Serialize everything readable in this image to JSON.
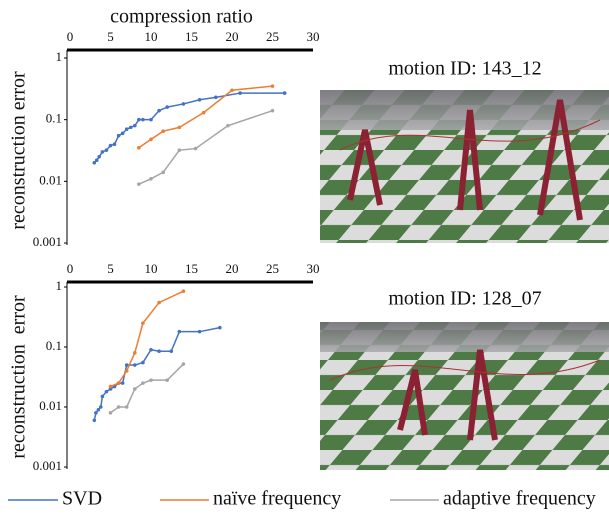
{
  "chart_data": [
    {
      "type": "line",
      "title": "motion ID: 143_12",
      "xlabel": "compression ratio",
      "ylabel": "reconstruction error",
      "xlim": [
        0,
        30
      ],
      "xticks": [
        0,
        5,
        10,
        15,
        20,
        25,
        30
      ],
      "ylim": [
        0.001,
        1
      ],
      "yticks": [
        1,
        0.1,
        0.01,
        0.001
      ],
      "log_y": true,
      "series": [
        {
          "name": "SVD",
          "color": "#4472c4",
          "x": [
            3,
            3.3,
            3.6,
            4,
            4.5,
            5,
            5.5,
            6,
            6.5,
            7,
            7.5,
            8,
            8.5,
            9,
            10,
            11,
            12,
            14,
            16,
            18,
            21,
            26.5
          ],
          "values": [
            0.02,
            0.022,
            0.025,
            0.03,
            0.032,
            0.038,
            0.04,
            0.055,
            0.06,
            0.07,
            0.075,
            0.08,
            0.1,
            0.1,
            0.1,
            0.14,
            0.16,
            0.18,
            0.21,
            0.23,
            0.27,
            0.27
          ]
        },
        {
          "name": "naïve frequency",
          "color": "#ed7d31",
          "x": [
            8.5,
            10,
            11.5,
            13.5,
            16.5,
            20,
            25
          ],
          "values": [
            0.035,
            0.048,
            0.065,
            0.075,
            0.13,
            0.3,
            0.35
          ]
        },
        {
          "name": "adaptive frequency",
          "color": "#a5a5a5",
          "x": [
            8.5,
            10,
            11.5,
            13.5,
            15.5,
            19.5,
            25
          ],
          "values": [
            0.009,
            0.011,
            0.014,
            0.032,
            0.034,
            0.08,
            0.14
          ]
        }
      ]
    },
    {
      "type": "line",
      "title": "motion ID: 128_07",
      "ylabel": "reconstruction  error",
      "xlim": [
        0,
        30
      ],
      "xticks": [
        0,
        5,
        10,
        15,
        20,
        25,
        30
      ],
      "ylim": [
        0.001,
        1
      ],
      "yticks": [
        1,
        0.1,
        0.01,
        0.001
      ],
      "log_y": true,
      "series": [
        {
          "color": "#4472c4",
          "x": [
            3,
            3.2,
            3.5,
            3.8,
            4,
            4.5,
            5,
            5.5,
            6,
            6.5,
            7,
            8,
            9,
            10,
            11,
            12.5,
            13.5,
            16,
            18.5
          ],
          "values": [
            0.006,
            0.008,
            0.009,
            0.01,
            0.015,
            0.018,
            0.02,
            0.022,
            0.025,
            0.025,
            0.05,
            0.05,
            0.055,
            0.09,
            0.085,
            0.085,
            0.18,
            0.18,
            0.21
          ]
        },
        {
          "color": "#ed7d31",
          "x": [
            5,
            6,
            7,
            8,
            9,
            11,
            14
          ],
          "values": [
            0.022,
            0.025,
            0.04,
            0.08,
            0.25,
            0.55,
            0.85
          ]
        },
        {
          "color": "#a5a5a5",
          "x": [
            5,
            6,
            7,
            8,
            9,
            10,
            12,
            14
          ],
          "values": [
            0.008,
            0.01,
            0.01,
            0.02,
            0.025,
            0.028,
            0.028,
            0.052
          ]
        }
      ]
    }
  ]
}
